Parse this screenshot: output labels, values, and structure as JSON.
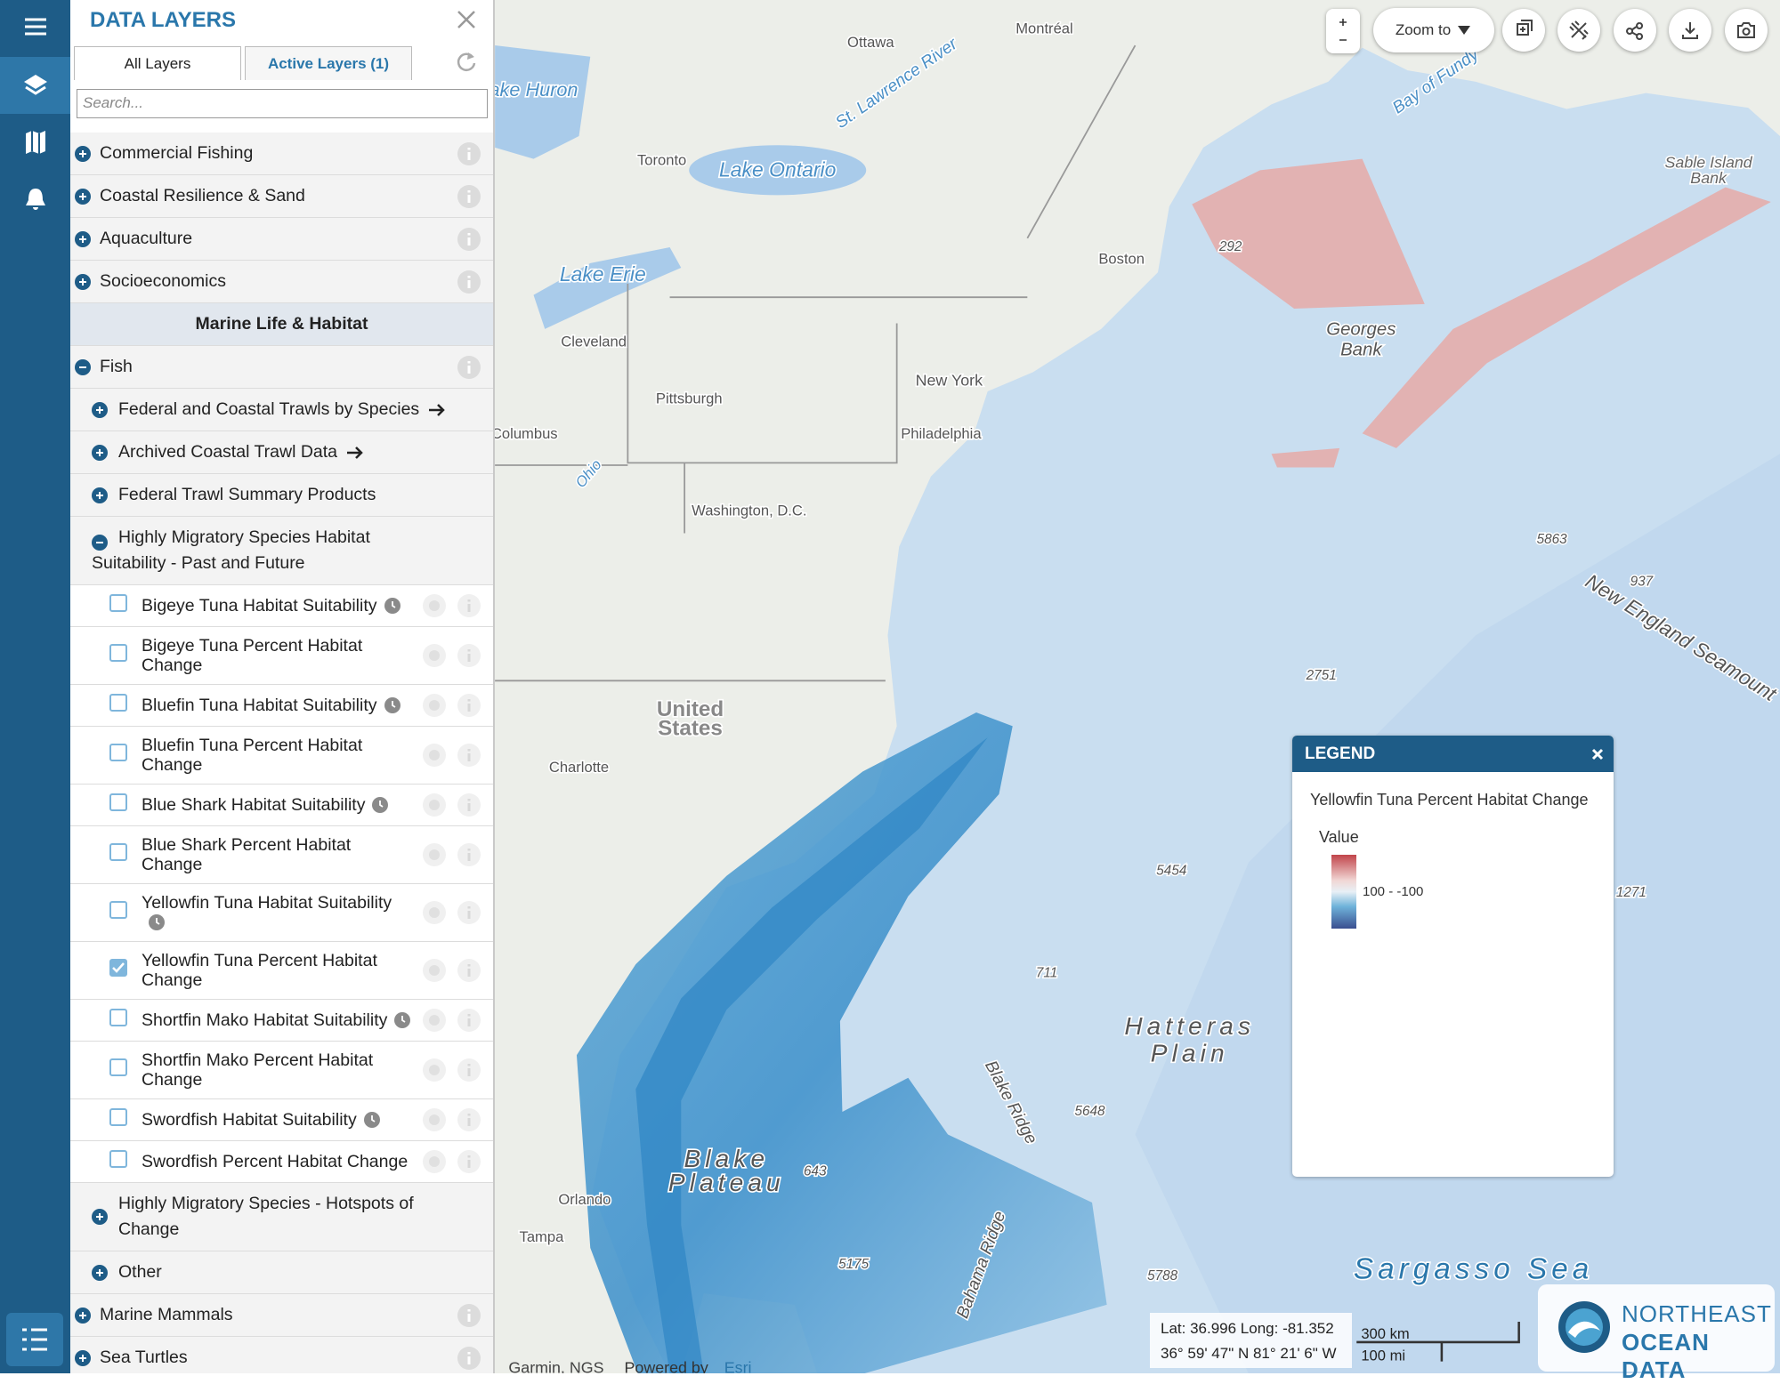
{
  "panel": {
    "title": "DATA LAYERS",
    "tabs": [
      "All Layers",
      "Active Layers (1)"
    ],
    "search_placeholder": "Search...",
    "rows": [
      {
        "label": "Commercial Fishing",
        "kind": "category",
        "expanded": false
      },
      {
        "label": "Coastal Resilience & Sand",
        "kind": "category",
        "expanded": false
      },
      {
        "label": "Aquaculture",
        "kind": "category",
        "expanded": false
      },
      {
        "label": "Socioeconomics",
        "kind": "category",
        "expanded": false
      },
      {
        "label": "Marine Life & Habitat",
        "kind": "section"
      },
      {
        "label": "Fish",
        "kind": "category",
        "expanded": true
      },
      {
        "label": "Federal and Coastal Trawls by Species",
        "kind": "group",
        "expanded": false,
        "link": true
      },
      {
        "label": "Archived Coastal Trawl Data",
        "kind": "group",
        "expanded": false,
        "link": true
      },
      {
        "label": "Federal Trawl Summary Products",
        "kind": "group",
        "expanded": false,
        "link": false
      },
      {
        "label": "Highly Migratory Species Habitat Suitability - Past and Future",
        "kind": "group",
        "expanded": true,
        "link": false
      },
      {
        "label": "Bigeye Tuna Habitat Suitability",
        "kind": "layer",
        "checked": false,
        "clock": true
      },
      {
        "label": "Bigeye Tuna Percent Habitat Change",
        "kind": "layer",
        "checked": false,
        "clock": false
      },
      {
        "label": "Bluefin Tuna Habitat Suitability",
        "kind": "layer",
        "checked": false,
        "clock": true
      },
      {
        "label": "Bluefin Tuna Percent Habitat Change",
        "kind": "layer",
        "checked": false,
        "clock": false
      },
      {
        "label": "Blue Shark Habitat Suitability",
        "kind": "layer",
        "checked": false,
        "clock": true
      },
      {
        "label": "Blue Shark Percent Habitat Change",
        "kind": "layer",
        "checked": false,
        "clock": false
      },
      {
        "label": "Yellowfin Tuna Habitat Suitability",
        "kind": "layer",
        "checked": false,
        "clock": true
      },
      {
        "label": "Yellowfin Tuna Percent Habitat Change",
        "kind": "layer",
        "checked": true,
        "clock": false
      },
      {
        "label": "Shortfin Mako Habitat Suitability",
        "kind": "layer",
        "checked": false,
        "clock": true
      },
      {
        "label": "Shortfin Mako Percent Habitat Change",
        "kind": "layer",
        "checked": false,
        "clock": false
      },
      {
        "label": "Swordfish Habitat Suitability",
        "kind": "layer",
        "checked": false,
        "clock": true
      },
      {
        "label": "Swordfish Percent Habitat Change",
        "kind": "layer",
        "checked": false,
        "clock": false
      },
      {
        "label": "Highly Migratory Species - Hotspots of Change",
        "kind": "group",
        "expanded": false,
        "link": false
      },
      {
        "label": "Other",
        "kind": "group",
        "expanded": false,
        "link": false
      },
      {
        "label": "Marine Mammals",
        "kind": "category",
        "expanded": false
      },
      {
        "label": "Sea Turtles",
        "kind": "category",
        "expanded": false
      }
    ]
  },
  "map": {
    "labels": [
      "Ottawa",
      "Montréal",
      "St. Lawrence River",
      "Bay of Fundy",
      "ake Huron",
      "Toronto",
      "Lake Ontario",
      "Sable Island",
      "Bank",
      "292",
      "Boston",
      "Lake Erie",
      "Georges",
      "Bank",
      "Cleveland",
      "New York",
      "Pittsburgh",
      "Philadelphia",
      "Columbus",
      "Ohio",
      "Washington, D.C.",
      "5863",
      "937",
      "New England Seamount",
      "2751",
      "United",
      "States",
      "Charlotte",
      "5454",
      "1271",
      "711",
      "Hatteras",
      "Plain",
      "Blake Ridge",
      "5648",
      "Blake",
      "Plateau",
      "643",
      "Orlando",
      "Tampa",
      "5175",
      "Bahama Ridge",
      "5788",
      "Sargasso Sea"
    ]
  },
  "toolbar": {
    "zoom_to": "Zoom to"
  },
  "legend": {
    "title": "LEGEND",
    "layer": "Yellowfin Tuna Percent Habitat Change",
    "field": "Value",
    "range": "100 - -100"
  },
  "coordinates": {
    "decimal": "Lat: 36.996 Long: -81.352",
    "dms": "36° 59' 47\" N 81° 21' 6\" W"
  },
  "scale": {
    "metric": "300 km",
    "imperial": "100 mi"
  },
  "attribution": {
    "sources": "Garmin, NGS",
    "powered_by": "Powered by",
    "provider": "Esri"
  },
  "logo": {
    "line1": "NORTHEAST",
    "line2": "OCEAN DATA"
  }
}
